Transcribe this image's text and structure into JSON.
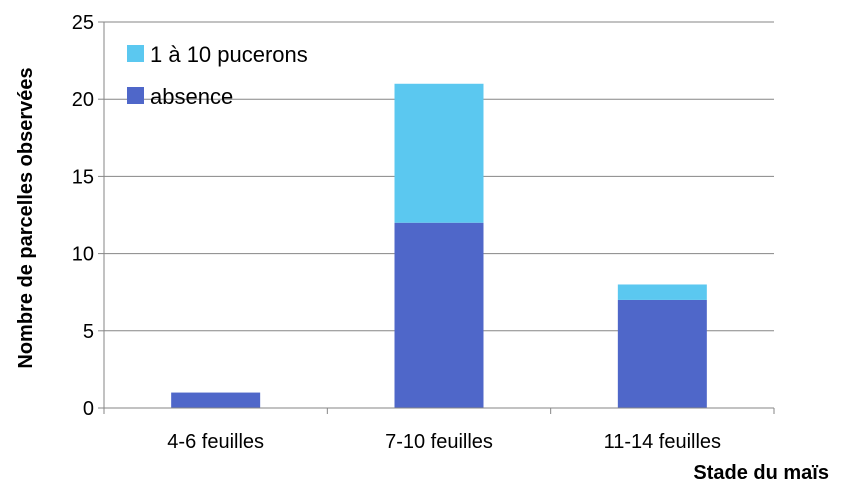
{
  "chart_data": {
    "type": "bar",
    "stacked": true,
    "categories": [
      "4-6 feuilles",
      "7-10 feuilles",
      "11-14 feuilles"
    ],
    "series": [
      {
        "name": "absence",
        "values": [
          1,
          12,
          7
        ],
        "color": "#4F67C9"
      },
      {
        "name": "1 à 10 pucerons",
        "values": [
          0,
          9,
          1
        ],
        "color": "#5BC8F0"
      }
    ],
    "xlabel": "Stade du maïs",
    "ylabel": "Nombre de parcelles observées",
    "ylim": [
      0,
      25
    ],
    "yticks": [
      0,
      5,
      10,
      15,
      20,
      25
    ],
    "grid": true,
    "legend_position": "top-left",
    "legend_order": [
      "1 à 10 pucerons",
      "absence"
    ]
  }
}
